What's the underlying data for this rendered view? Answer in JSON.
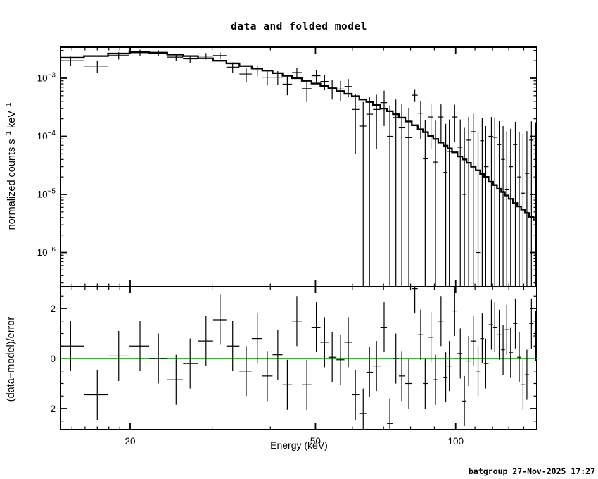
{
  "title": "data and folded model",
  "footer": "batgroup 27-Nov-2025 17:27",
  "colors": {
    "foreground": "#000000",
    "background": "#ffffff",
    "model_line": "#000000",
    "zero_line_green": "#00dd00"
  },
  "axes": {
    "x": {
      "label": "Energy (keV)",
      "scale": "log",
      "min": 14.2,
      "max": 149.3,
      "major_ticks": [
        20,
        50,
        100
      ],
      "minor_ticks": [
        15,
        16,
        17,
        18,
        19,
        30,
        40,
        60,
        70,
        80,
        90,
        110,
        120,
        130,
        140
      ]
    },
    "y_top": {
      "label_prefix": "normalized counts s",
      "label_sup1": "−1",
      "label_mid": " keV",
      "label_sup2": "−1",
      "scale": "log",
      "min": 2.4e-07,
      "max": 0.0034,
      "major_tick_exponents": [
        -3,
        -4,
        -5,
        -6
      ]
    },
    "y_bottom": {
      "label": "(data−model)/error",
      "scale": "linear",
      "min": -2.85,
      "max": 2.87,
      "major_ticks": [
        -2,
        0,
        2
      ],
      "minor_ticks": [
        -2.5,
        -1.5,
        -1,
        -0.5,
        0.5,
        1,
        1.5,
        2.5
      ]
    }
  },
  "chart_data": [
    {
      "type": "scatter",
      "name": "spectrum-data-and-folded-model",
      "panel": "top",
      "x_unit": "keV",
      "y_unit": "normalized counts s^-1 keV^-1",
      "x": [
        14.9,
        17.0,
        18.9,
        21.0,
        23.0,
        25.1,
        26.9,
        29.1,
        31.2,
        33.2,
        35.5,
        37.5,
        39.4,
        41.5,
        43.5,
        45.6,
        47.9,
        50.2,
        52.3,
        54.3,
        56.6,
        58.8,
        60.9,
        63.3,
        65.3,
        67.6,
        70.2,
        72.2,
        74.4,
        76.6,
        79.3,
        81.7,
        84.1,
        86.0,
        88.5,
        90.5,
        93.0,
        95.2,
        96.9,
        99.5,
        102.3,
        104.4,
        106.6,
        109.1,
        111.7,
        114.0,
        116.0,
        119.3,
        121.3,
        124.0,
        126.4,
        128.7,
        131.2,
        134.3,
        136.9,
        139.5,
        142.2,
        145.4,
        148.5
      ],
      "y": [
        0.002,
        0.00162,
        0.00245,
        0.00275,
        0.0027,
        0.0023,
        0.00215,
        0.0024,
        0.00245,
        0.00155,
        0.00118,
        0.00138,
        0.00104,
        0.00104,
        0.00079,
        0.00125,
        0.00066,
        0.0011,
        0.00088,
        0.00068,
        0.00065,
        0.00072,
        0.00029,
        0.00015,
        0.00024,
        0.00029,
        0.00038,
        0.0001,
        0.00021,
        0.00014,
        9.5e-05,
        0.00051,
        0.00025,
        4.1e-05,
        0.000215,
        3.6e-05,
        0.000215,
        2.4e-05,
        5.5e-05,
        0.000215,
        6.5e-05,
        1e-05,
        8.6e-05,
        0.00012,
        1e-06,
        8.4e-05,
        3e-05,
        0.0001,
        9.6e-05,
        7.2e-05,
        4e-05,
        1.2e-05,
        3e-05,
        7.2e-05,
        2e-05,
        1.05e-05,
        2.3e-05,
        8.6e-05,
        8e-05
      ],
      "yerr": [
        0.00035,
        0.0004,
        0.00035,
        0.00033,
        0.00032,
        0.00031,
        0.0003,
        0.0003,
        0.00033,
        0.00032,
        0.00031,
        0.0003,
        0.00029,
        0.00028,
        0.00028,
        0.00027,
        0.00027,
        0.00026,
        0.00026,
        0.00025,
        0.00025,
        0.00025,
        0.00024,
        0.00024,
        0.00024,
        0.00023,
        0.00023,
        0.00024,
        0.00022,
        0.00022,
        0.00021,
        0.00012,
        0.00016,
        0.00015,
        0.000155,
        0.00015,
        0.00014,
        0.00014,
        0.00014,
        0.000135,
        0.00013,
        0.00013,
        0.00013,
        0.000125,
        0.00012,
        0.00012,
        0.00012,
        0.000115,
        0.000115,
        0.00011,
        0.00011,
        0.00011,
        0.000105,
        0.000105,
        0.0001,
        0.0001,
        0.0001,
        9.5e-05,
        9.5e-05
      ],
      "model_y": [
        0.00225,
        0.0024,
        0.00265,
        0.0028,
        0.00275,
        0.00255,
        0.0024,
        0.0022,
        0.002,
        0.0018,
        0.00162,
        0.00147,
        0.00135,
        0.00122,
        0.0011,
        0.001,
        0.0009,
        0.00081,
        0.00074,
        0.00067,
        0.0006,
        0.00054,
        0.00049,
        0.00043,
        0.00039,
        0.000345,
        0.0003,
        0.00027,
        0.00024,
        0.00021,
        0.00018,
        0.000155,
        0.000132,
        0.000118,
        0.000102,
        9e-05,
        7.8e-05,
        6.9e-05,
        6.2e-05,
        5.3e-05,
        4.5e-05,
        4e-05,
        3.5e-05,
        3e-05,
        2.6e-05,
        2.25e-05,
        2e-05,
        1.65e-05,
        1.45e-05,
        1.25e-05,
        1.1e-05,
        9.6e-06,
        8.4e-06,
        7.1e-06,
        6.2e-06,
        5.5e-06,
        4.8e-06,
        4.1e-06,
        3.6e-06
      ],
      "model_style": "stepped-histogram",
      "bins_contiguous": true
    },
    {
      "type": "scatter",
      "name": "residuals-delta-chi",
      "panel": "bottom",
      "x_unit": "keV",
      "y_unit": "(data-model)/error",
      "x": [
        14.9,
        17.0,
        18.9,
        21.0,
        23.0,
        25.1,
        26.9,
        29.1,
        31.2,
        33.2,
        35.5,
        37.5,
        39.4,
        41.5,
        43.5,
        45.6,
        47.9,
        50.2,
        52.3,
        54.3,
        56.6,
        58.8,
        60.9,
        63.3,
        65.3,
        67.6,
        70.2,
        72.2,
        74.4,
        76.6,
        79.3,
        81.7,
        84.1,
        86.0,
        88.5,
        90.5,
        93.0,
        95.2,
        96.9,
        99.5,
        102.3,
        104.4,
        106.6,
        109.1,
        111.7,
        114.0,
        116.0,
        119.3,
        121.3,
        124.0,
        126.4,
        128.7,
        131.2,
        134.3,
        136.9,
        139.5,
        142.2,
        145.4,
        148.5
      ],
      "y": [
        0.5,
        -1.45,
        0.1,
        0.5,
        0.0,
        -0.85,
        -0.2,
        0.7,
        1.55,
        0.5,
        -0.5,
        0.8,
        -0.7,
        0.15,
        -1.05,
        1.5,
        -1.05,
        1.25,
        0.65,
        0.05,
        -0.05,
        0.65,
        -1.45,
        -2.2,
        -0.55,
        -0.3,
        1.25,
        -2.6,
        0.0,
        -0.7,
        -1.0,
        2.8,
        0.95,
        -1.0,
        0.85,
        -0.85,
        1.5,
        -0.75,
        -0.3,
        1.9,
        0.2,
        -1.7,
        -0.1,
        0.7,
        -0.5,
        0.8,
        -0.2,
        1.35,
        1.25,
        0.95,
        0.35,
        1.15,
        0.25,
        1.4,
        0.05,
        -1.05,
        -0.65,
        1.4,
        0.9
      ],
      "yerr_constant": 1,
      "zero_line": 0
    }
  ]
}
